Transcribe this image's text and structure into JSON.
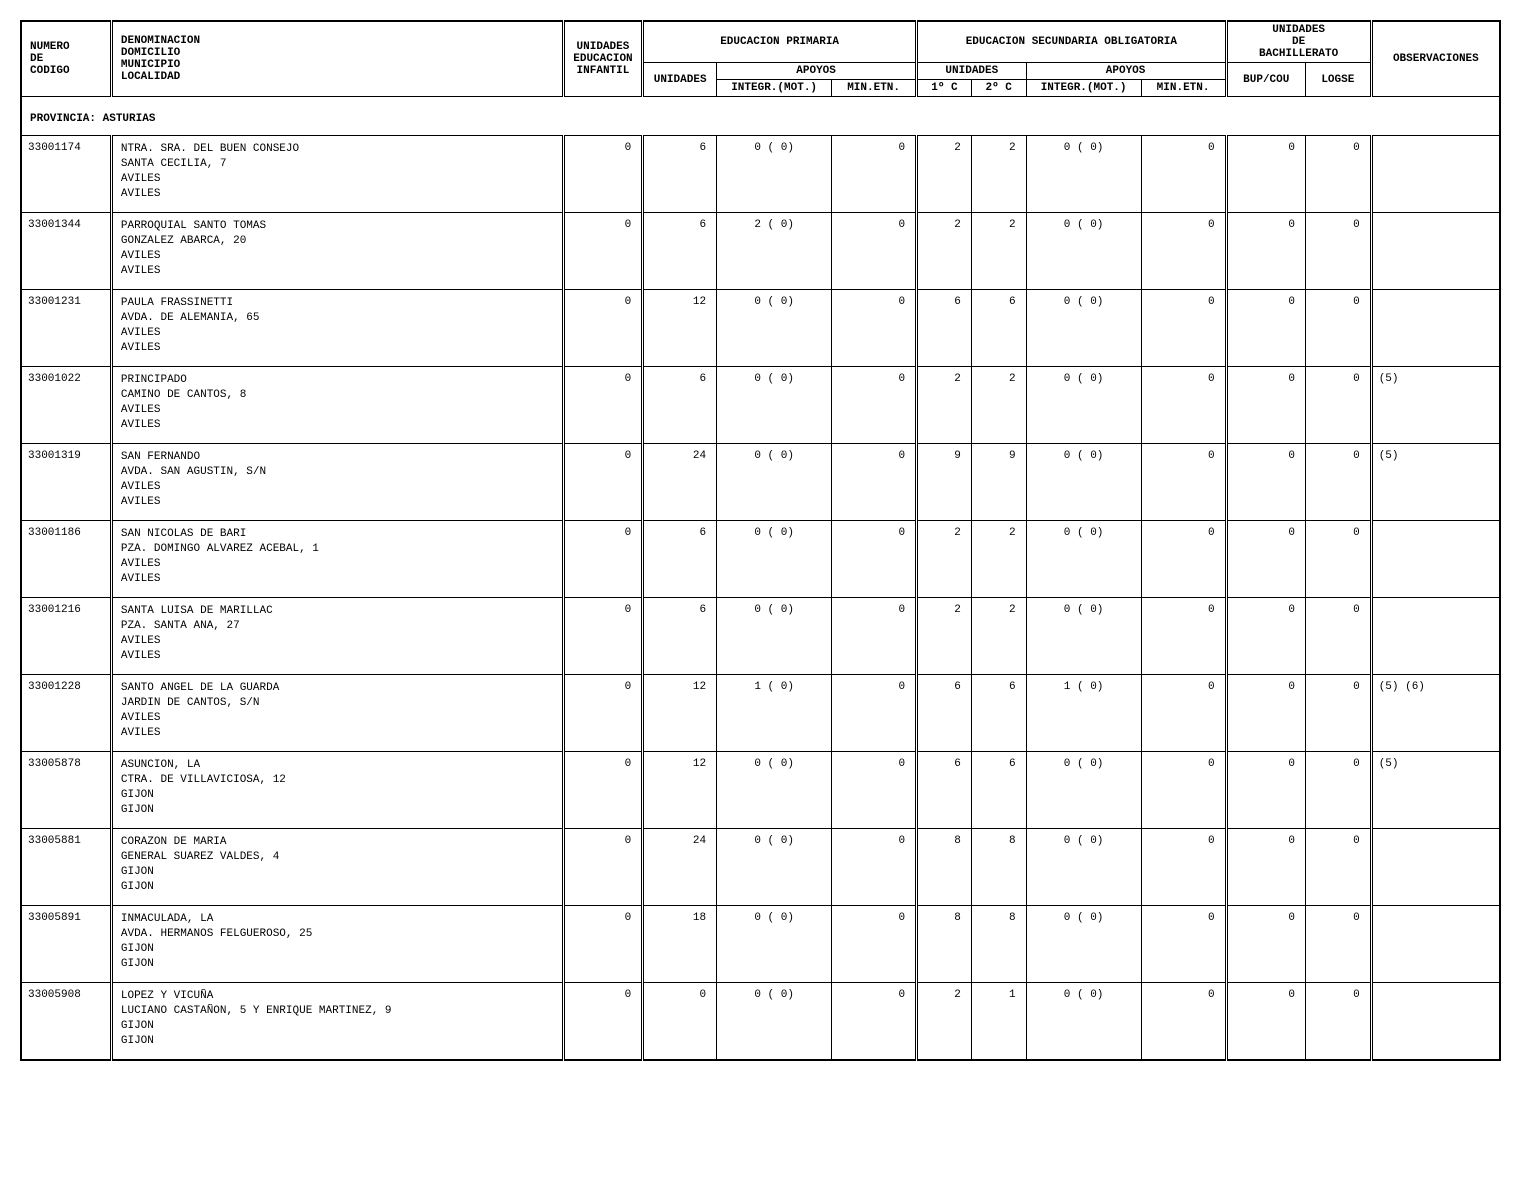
{
  "header": {
    "col_code": [
      "NUMERO",
      "DE",
      "CODIGO"
    ],
    "col_denom": [
      "DENOMINACION",
      "DOMICILIO",
      "MUNICIPIO",
      "LOCALIDAD"
    ],
    "col_infantil": [
      "UNIDADES",
      "EDUCACION",
      "INFANTIL"
    ],
    "ep_title": "EDUCACION PRIMARIA",
    "ep_unidades": "UNIDADES",
    "ep_apoyos": "APOYOS",
    "ep_integ": "INTEGR.(MOT.)",
    "ep_min": "MIN.ETN.",
    "eso_title": "EDUCACION SECUNDARIA OBLIGATORIA",
    "eso_unidades": "UNIDADES",
    "eso_1c": "1º C",
    "eso_2c": "2º C",
    "eso_apoyos": "APOYOS",
    "eso_integ": "INTEGR.(MOT.)",
    "eso_min": "MIN.ETN.",
    "bach_title": [
      "UNIDADES",
      "DE",
      "BACHILLERATO"
    ],
    "bach_bup": "BUP/COU",
    "bach_logse": "LOGSE",
    "obs": "OBSERVACIONES"
  },
  "province": "PROVINCIA: ASTURIAS",
  "rows": [
    {
      "code": "33001174",
      "denom": "NTRA. SRA. DEL BUEN CONSEJO\nSANTA CECILIA, 7\nAVILES\nAVILES",
      "inf": "0",
      "epu": "6",
      "epint": "0 ( 0)",
      "epmin": "0",
      "c1": "2",
      "c2": "2",
      "esint": "0 ( 0)",
      "esmin": "0",
      "bup": "0",
      "logse": "0",
      "obs": ""
    },
    {
      "code": "33001344",
      "denom": "PARROQUIAL SANTO TOMAS\nGONZALEZ ABARCA, 20\nAVILES\nAVILES",
      "inf": "0",
      "epu": "6",
      "epint": "2 ( 0)",
      "epmin": "0",
      "c1": "2",
      "c2": "2",
      "esint": "0 ( 0)",
      "esmin": "0",
      "bup": "0",
      "logse": "0",
      "obs": ""
    },
    {
      "code": "33001231",
      "denom": "PAULA FRASSINETTI\nAVDA. DE ALEMANIA, 65\nAVILES\nAVILES",
      "inf": "0",
      "epu": "12",
      "epint": "0 ( 0)",
      "epmin": "0",
      "c1": "6",
      "c2": "6",
      "esint": "0 ( 0)",
      "esmin": "0",
      "bup": "0",
      "logse": "0",
      "obs": ""
    },
    {
      "code": "33001022",
      "denom": "PRINCIPADO\nCAMINO DE CANTOS, 8\nAVILES\nAVILES",
      "inf": "0",
      "epu": "6",
      "epint": "0 ( 0)",
      "epmin": "0",
      "c1": "2",
      "c2": "2",
      "esint": "0 ( 0)",
      "esmin": "0",
      "bup": "0",
      "logse": "0",
      "obs": "(5)"
    },
    {
      "code": "33001319",
      "denom": "SAN FERNANDO\nAVDA. SAN AGUSTIN, S/N\nAVILES\nAVILES",
      "inf": "0",
      "epu": "24",
      "epint": "0 ( 0)",
      "epmin": "0",
      "c1": "9",
      "c2": "9",
      "esint": "0 ( 0)",
      "esmin": "0",
      "bup": "0",
      "logse": "0",
      "obs": "(5)"
    },
    {
      "code": "33001186",
      "denom": "SAN NICOLAS DE BARI\nPZA. DOMINGO ALVAREZ ACEBAL, 1\nAVILES\nAVILES",
      "inf": "0",
      "epu": "6",
      "epint": "0 ( 0)",
      "epmin": "0",
      "c1": "2",
      "c2": "2",
      "esint": "0 ( 0)",
      "esmin": "0",
      "bup": "0",
      "logse": "0",
      "obs": ""
    },
    {
      "code": "33001216",
      "denom": "SANTA LUISA DE MARILLAC\nPZA. SANTA ANA, 27\nAVILES\nAVILES",
      "inf": "0",
      "epu": "6",
      "epint": "0 ( 0)",
      "epmin": "0",
      "c1": "2",
      "c2": "2",
      "esint": "0 ( 0)",
      "esmin": "0",
      "bup": "0",
      "logse": "0",
      "obs": ""
    },
    {
      "code": "33001228",
      "denom": "SANTO ANGEL DE LA GUARDA\nJARDIN DE CANTOS, S/N\nAVILES\nAVILES",
      "inf": "0",
      "epu": "12",
      "epint": "1 ( 0)",
      "epmin": "0",
      "c1": "6",
      "c2": "6",
      "esint": "1 ( 0)",
      "esmin": "0",
      "bup": "0",
      "logse": "0",
      "obs": "(5) (6)"
    },
    {
      "code": "33005878",
      "denom": "ASUNCION, LA\nCTRA. DE VILLAVICIOSA, 12\nGIJON\nGIJON",
      "inf": "0",
      "epu": "12",
      "epint": "0 ( 0)",
      "epmin": "0",
      "c1": "6",
      "c2": "6",
      "esint": "0 ( 0)",
      "esmin": "0",
      "bup": "0",
      "logse": "0",
      "obs": "(5)"
    },
    {
      "code": "33005881",
      "denom": "CORAZON DE MARIA\nGENERAL SUAREZ VALDES, 4\nGIJON\nGIJON",
      "inf": "0",
      "epu": "24",
      "epint": "0 ( 0)",
      "epmin": "0",
      "c1": "8",
      "c2": "8",
      "esint": "0 ( 0)",
      "esmin": "0",
      "bup": "0",
      "logse": "0",
      "obs": ""
    },
    {
      "code": "33005891",
      "denom": "INMACULADA, LA\nAVDA. HERMANOS FELGUEROSO, 25\nGIJON\nGIJON",
      "inf": "0",
      "epu": "18",
      "epint": "0 ( 0)",
      "epmin": "0",
      "c1": "8",
      "c2": "8",
      "esint": "0 ( 0)",
      "esmin": "0",
      "bup": "0",
      "logse": "0",
      "obs": ""
    },
    {
      "code": "33005908",
      "denom": "LOPEZ Y VICUÑA\nLUCIANO CASTAÑON, 5 Y ENRIQUE MARTINEZ, 9\nGIJON\nGIJON",
      "inf": "0",
      "epu": "0",
      "epint": "0 ( 0)",
      "epmin": "0",
      "c1": "2",
      "c2": "1",
      "esint": "0 ( 0)",
      "esmin": "0",
      "bup": "0",
      "logse": "0",
      "obs": ""
    }
  ]
}
